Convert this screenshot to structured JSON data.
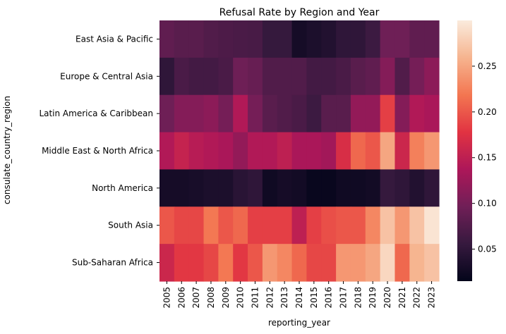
{
  "chart_data": {
    "type": "heatmap",
    "title": "Refusal Rate by Region and Year",
    "xlabel": "reporting_year",
    "ylabel": "consulate_country_region",
    "x": [
      "2005",
      "2006",
      "2007",
      "2008",
      "2009",
      "2010",
      "2011",
      "2012",
      "2013",
      "2014",
      "2015",
      "2016",
      "2017",
      "2018",
      "2019",
      "2020",
      "2021",
      "2022",
      "2023"
    ],
    "y": [
      "East Asia & Pacific",
      "Europe & Central Asia",
      "Latin America & Caribbean",
      "Middle East & North Africa",
      "North America",
      "South Asia",
      "Sub-Saharan Africa"
    ],
    "values": [
      [
        0.085,
        0.08,
        0.08,
        0.075,
        0.072,
        0.07,
        0.068,
        0.055,
        0.055,
        0.03,
        0.035,
        0.04,
        0.05,
        0.05,
        0.06,
        0.095,
        0.095,
        0.085,
        0.085
      ],
      [
        0.05,
        0.07,
        0.065,
        0.065,
        0.07,
        0.095,
        0.09,
        0.075,
        0.075,
        0.075,
        0.065,
        0.065,
        0.07,
        0.08,
        0.085,
        0.11,
        0.075,
        0.1,
        0.115
      ],
      [
        0.095,
        0.11,
        0.11,
        0.115,
        0.1,
        0.14,
        0.1,
        0.08,
        0.075,
        0.07,
        0.06,
        0.08,
        0.08,
        0.12,
        0.12,
        0.185,
        0.11,
        0.14,
        0.135
      ],
      [
        0.14,
        0.155,
        0.145,
        0.14,
        0.135,
        0.12,
        0.14,
        0.14,
        0.15,
        0.135,
        0.135,
        0.13,
        0.17,
        0.21,
        0.2,
        0.25,
        0.16,
        0.225,
        0.24
      ],
      [
        0.03,
        0.03,
        0.032,
        0.035,
        0.035,
        0.045,
        0.05,
        0.025,
        0.03,
        0.028,
        0.02,
        0.02,
        0.025,
        0.025,
        0.028,
        0.055,
        0.05,
        0.04,
        0.05
      ],
      [
        0.2,
        0.19,
        0.19,
        0.22,
        0.2,
        0.21,
        0.185,
        0.185,
        0.185,
        0.15,
        0.185,
        0.195,
        0.2,
        0.2,
        0.23,
        0.27,
        0.24,
        0.27,
        0.295
      ],
      [
        0.16,
        0.18,
        0.18,
        0.19,
        0.22,
        0.18,
        0.2,
        0.24,
        0.23,
        0.21,
        0.19,
        0.19,
        0.24,
        0.24,
        0.25,
        0.285,
        0.21,
        0.26,
        0.27
      ]
    ],
    "vmin": 0.015,
    "vmax": 0.3,
    "colorbar": {
      "ticks": [
        0.05,
        0.1,
        0.15,
        0.2,
        0.25
      ],
      "tick_labels": [
        "0.05",
        "0.10",
        "0.15",
        "0.20",
        "0.25"
      ]
    },
    "colormap": [
      "#03051a",
      "#36193e",
      "#701f57",
      "#ad1759",
      "#e13342",
      "#f37651",
      "#f6b48f",
      "#faebdd"
    ],
    "grid": false,
    "legend": "colorbar-right"
  }
}
